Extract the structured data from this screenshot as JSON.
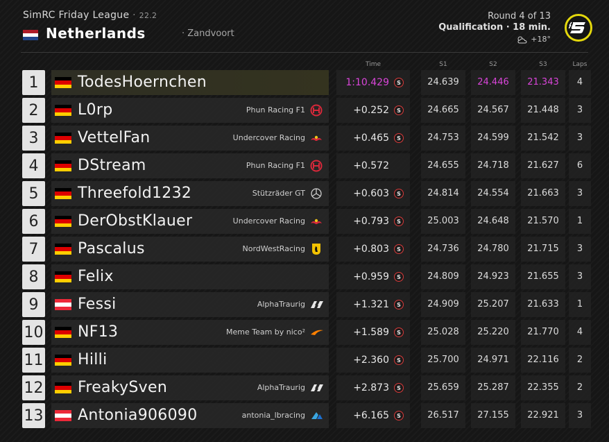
{
  "header": {
    "league": "SimRC Friday League",
    "league_sep": " · ",
    "season": "22.2",
    "country": "Netherlands",
    "track": "· Zandvoort",
    "round": "Round 4 of 13",
    "session": "Qualification · 18 min.",
    "temperature": "+18°",
    "weather_icon": "partly-cloudy-icon",
    "logo_letter": "S"
  },
  "columns": {
    "time": "Time",
    "s1": "S1",
    "s2": "S2",
    "s3": "S3",
    "laps": "Laps"
  },
  "colors": {
    "purple": "#d945d9",
    "logo_ring": "#e4d80c"
  },
  "rows": [
    {
      "pos": "1",
      "flag": "de",
      "driver": "TodesHoernchen",
      "team": "",
      "team_icon": "",
      "time": "1:10.429",
      "time_best": true,
      "s_badge": true,
      "s1": "24.639",
      "s2": "24.446",
      "s3": "21.343",
      "s2_best": true,
      "s3_best": true,
      "laps": "4"
    },
    {
      "pos": "2",
      "flag": "de",
      "driver": "L0rp",
      "team": "Phun Racing F1",
      "team_icon": "haas-icon",
      "time": "+0.252",
      "s_badge": true,
      "s1": "24.665",
      "s2": "24.567",
      "s3": "21.448",
      "laps": "3"
    },
    {
      "pos": "3",
      "flag": "de",
      "driver": "VettelFan",
      "team": "Undercover Racing",
      "team_icon": "redbull-icon",
      "time": "+0.465",
      "s_badge": true,
      "s1": "24.753",
      "s2": "24.599",
      "s3": "21.542",
      "laps": "3"
    },
    {
      "pos": "4",
      "flag": "de",
      "driver": "DStream",
      "team": "Phun Racing F1",
      "team_icon": "haas-icon",
      "time": "+0.572",
      "s_badge": false,
      "s1": "24.655",
      "s2": "24.718",
      "s3": "21.627",
      "laps": "6"
    },
    {
      "pos": "5",
      "flag": "de",
      "driver": "Threefold1232",
      "team": "Stützräder GT",
      "team_icon": "mercedes-icon",
      "time": "+0.603",
      "s_badge": true,
      "s1": "24.814",
      "s2": "24.554",
      "s3": "21.663",
      "laps": "3"
    },
    {
      "pos": "6",
      "flag": "de",
      "driver": "DerObstKlauer",
      "team": "Undercover Racing",
      "team_icon": "redbull-icon",
      "time": "+0.793",
      "s_badge": true,
      "s1": "25.003",
      "s2": "24.648",
      "s3": "21.570",
      "laps": "1"
    },
    {
      "pos": "7",
      "flag": "de",
      "driver": "Pascalus",
      "team": "NordWestRacing",
      "team_icon": "ferrari-icon",
      "time": "+0.803",
      "s_badge": true,
      "s1": "24.736",
      "s2": "24.780",
      "s3": "21.715",
      "laps": "3"
    },
    {
      "pos": "8",
      "flag": "de",
      "driver": "Felix",
      "team": "",
      "team_icon": "",
      "time": "+0.959",
      "s_badge": true,
      "s1": "24.809",
      "s2": "24.923",
      "s3": "21.655",
      "laps": "3"
    },
    {
      "pos": "9",
      "flag": "at",
      "driver": "Fessi",
      "team": "AlphaTraurig",
      "team_icon": "alphatauri-icon",
      "time": "+1.321",
      "s_badge": true,
      "s1": "24.909",
      "s2": "25.207",
      "s3": "21.633",
      "laps": "1"
    },
    {
      "pos": "10",
      "flag": "de",
      "driver": "NF13",
      "team": "Meme Team by nico²",
      "team_icon": "mclaren-icon",
      "time": "+1.589",
      "s_badge": true,
      "s1": "25.028",
      "s2": "25.220",
      "s3": "21.770",
      "laps": "4"
    },
    {
      "pos": "11",
      "flag": "de",
      "driver": "Hilli",
      "team": "",
      "team_icon": "",
      "time": "+2.360",
      "s_badge": true,
      "s1": "25.700",
      "s2": "24.971",
      "s3": "22.116",
      "laps": "2"
    },
    {
      "pos": "12",
      "flag": "de",
      "driver": "FreakySven",
      "team": "AlphaTraurig",
      "team_icon": "alphatauri-icon",
      "time": "+2.873",
      "s_badge": true,
      "s1": "25.659",
      "s2": "25.287",
      "s3": "22.355",
      "laps": "2"
    },
    {
      "pos": "13",
      "flag": "at",
      "driver": "Antonia906090",
      "team": "antonia_lbracing",
      "team_icon": "alpine-icon",
      "time": "+6.165",
      "s_badge": true,
      "s1": "26.517",
      "s2": "27.155",
      "s3": "22.921",
      "laps": "3"
    }
  ]
}
